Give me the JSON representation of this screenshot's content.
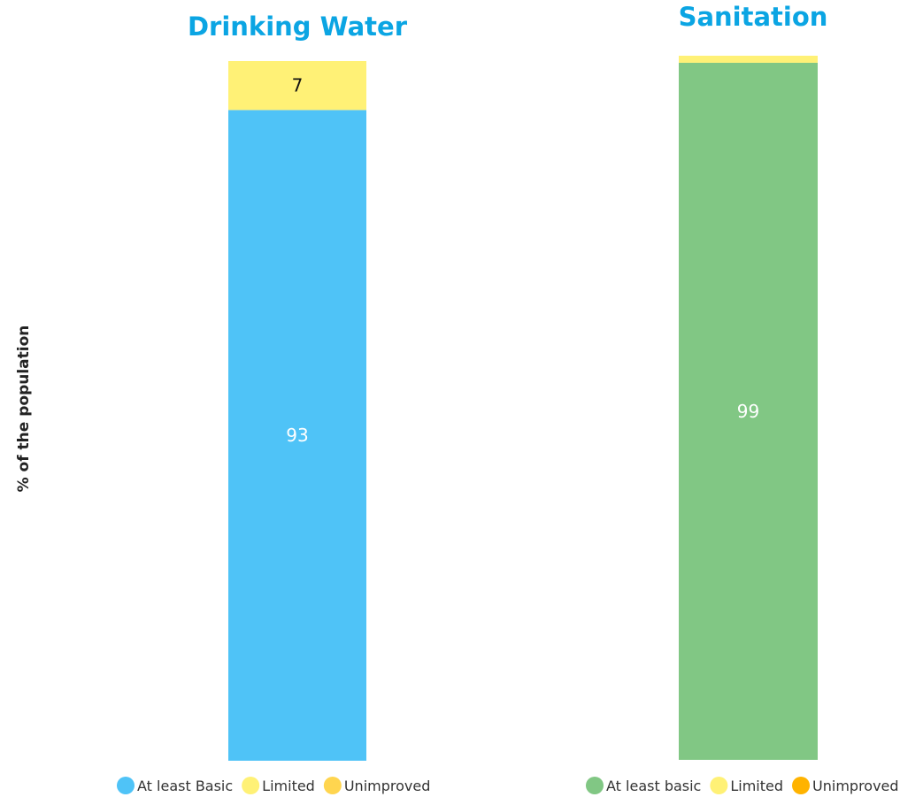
{
  "ylabel": "% of the population",
  "chart_data": [
    {
      "type": "bar",
      "stacked": true,
      "title": "Drinking Water",
      "title_color": "#0ba5e3",
      "ylabel": "% of the population",
      "ylim": [
        0,
        100
      ],
      "categories": [
        ""
      ],
      "series": [
        {
          "name": "At least Basic",
          "values": [
            93
          ],
          "color": "#4fc3f7",
          "label": "93",
          "label_color": "#ffffff"
        },
        {
          "name": "Limited",
          "values": [
            7
          ],
          "color": "#fff176",
          "label": "7",
          "label_color": "#111111"
        },
        {
          "name": "Unimproved",
          "values": [
            0
          ],
          "color": "#ffd54f",
          "label": "",
          "label_color": "#111111"
        }
      ],
      "legend_placement": "bottom"
    },
    {
      "type": "bar",
      "stacked": true,
      "title": "Sanitation",
      "title_color": "#0ba5e3",
      "ylabel": "% of the population",
      "ylim": [
        0,
        100
      ],
      "categories": [
        ""
      ],
      "series": [
        {
          "name": "At least basic",
          "values": [
            99
          ],
          "color": "#81c784",
          "label": "99",
          "label_color": "#ffffff"
        },
        {
          "name": "Limited",
          "values": [
            1
          ],
          "color": "#fff176",
          "label": "",
          "label_color": "#111111"
        },
        {
          "name": "Unimproved",
          "values": [
            0
          ],
          "color": "#ffb300",
          "label": "",
          "label_color": "#111111"
        }
      ],
      "legend_placement": "bottom"
    }
  ]
}
